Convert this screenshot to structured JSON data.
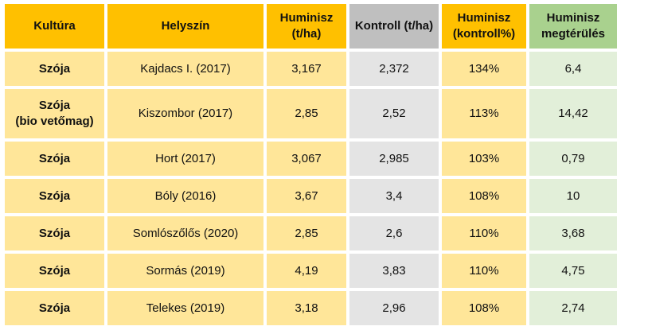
{
  "headers": {
    "kultura": "Kultúra",
    "helyszin": "Helyszín",
    "huminisz_line1": "Huminisz",
    "huminisz_line2": "(t/ha)",
    "kontroll": "Kontroll (t/ha)",
    "huminisz_kontroll_line1": "Huminisz",
    "huminisz_kontroll_line2": "(kontroll%)",
    "megterules_line1": "Huminisz",
    "megterules_line2": "megtérülés"
  },
  "rows": [
    {
      "kultura": "Szója",
      "kultura_sub": "",
      "helyszin": "Kajdacs I. (2017)",
      "huminisz": "3,167",
      "kontroll": "2,372",
      "pct": "134%",
      "megterules": "6,4"
    },
    {
      "kultura": "Szója",
      "kultura_sub": "(bio vetőmag)",
      "helyszin": "Kiszombor (2017)",
      "huminisz": "2,85",
      "kontroll": "2,52",
      "pct": "113%",
      "megterules": "14,42"
    },
    {
      "kultura": "Szója",
      "kultura_sub": "",
      "helyszin": "Hort (2017)",
      "huminisz": "3,067",
      "kontroll": "2,985",
      "pct": "103%",
      "megterules": "0,79"
    },
    {
      "kultura": "Szója",
      "kultura_sub": "",
      "helyszin": "Bóly (2016)",
      "huminisz": "3,67",
      "kontroll": "3,4",
      "pct": "108%",
      "megterules": "10"
    },
    {
      "kultura": "Szója",
      "kultura_sub": "",
      "helyszin": "Somlószőlős (2020)",
      "huminisz": "2,85",
      "kontroll": "2,6",
      "pct": "110%",
      "megterules": "3,68"
    },
    {
      "kultura": "Szója",
      "kultura_sub": "",
      "helyszin": "Sormás (2019)",
      "huminisz": "4,19",
      "kontroll": "3,83",
      "pct": "110%",
      "megterules": "4,75"
    },
    {
      "kultura": "Szója",
      "kultura_sub": "",
      "helyszin": "Telekes (2019)",
      "huminisz": "3,18",
      "kontroll": "2,96",
      "pct": "108%",
      "megterules": "2,74"
    }
  ],
  "colors": {
    "header_orange": "#ffc000",
    "header_gray": "#bfbfbf",
    "header_green": "#a9d18e",
    "cell_orange": "#ffe699",
    "cell_gray": "#e4e4e4",
    "cell_green": "#e2efd9"
  }
}
